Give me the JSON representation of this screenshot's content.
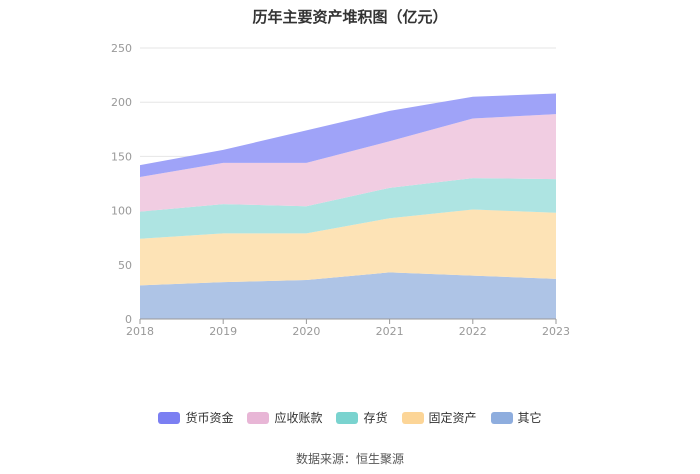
{
  "chart_data": {
    "type": "area",
    "stacked": true,
    "title": "历年主要资产堆积图（亿元）",
    "categories": [
      "2018",
      "2019",
      "2020",
      "2021",
      "2022",
      "2023"
    ],
    "ylim": [
      0,
      250
    ],
    "yticks": [
      0,
      50,
      100,
      150,
      200,
      250
    ],
    "grid": true,
    "legend_position": "bottom",
    "series": [
      {
        "name": "其它",
        "color": "#aec4e6",
        "values": [
          31,
          34,
          36,
          43,
          40,
          37
        ]
      },
      {
        "name": "固定资产",
        "color": "#fde3b6",
        "values": [
          43,
          45,
          43,
          50,
          61,
          61
        ]
      },
      {
        "name": "存货",
        "color": "#aee4e2",
        "values": [
          25,
          27,
          25,
          28,
          29,
          31
        ]
      },
      {
        "name": "应收账款",
        "color": "#f1cde2",
        "values": [
          32,
          38,
          40,
          43,
          55,
          60
        ]
      },
      {
        "name": "货币资金",
        "color": "#9fa3f8",
        "values": [
          11,
          12,
          30,
          28,
          20,
          19
        ]
      }
    ],
    "legend_order": [
      "货币资金",
      "应收账款",
      "存货",
      "固定资产",
      "其它"
    ],
    "legend_colors": {
      "货币资金": "#7b7ff2",
      "应收账款": "#e8b6d6",
      "存货": "#7ad3cf",
      "固定资产": "#fcd597",
      "其它": "#8eadde"
    }
  },
  "source_text": "数据来源：恒生聚源"
}
